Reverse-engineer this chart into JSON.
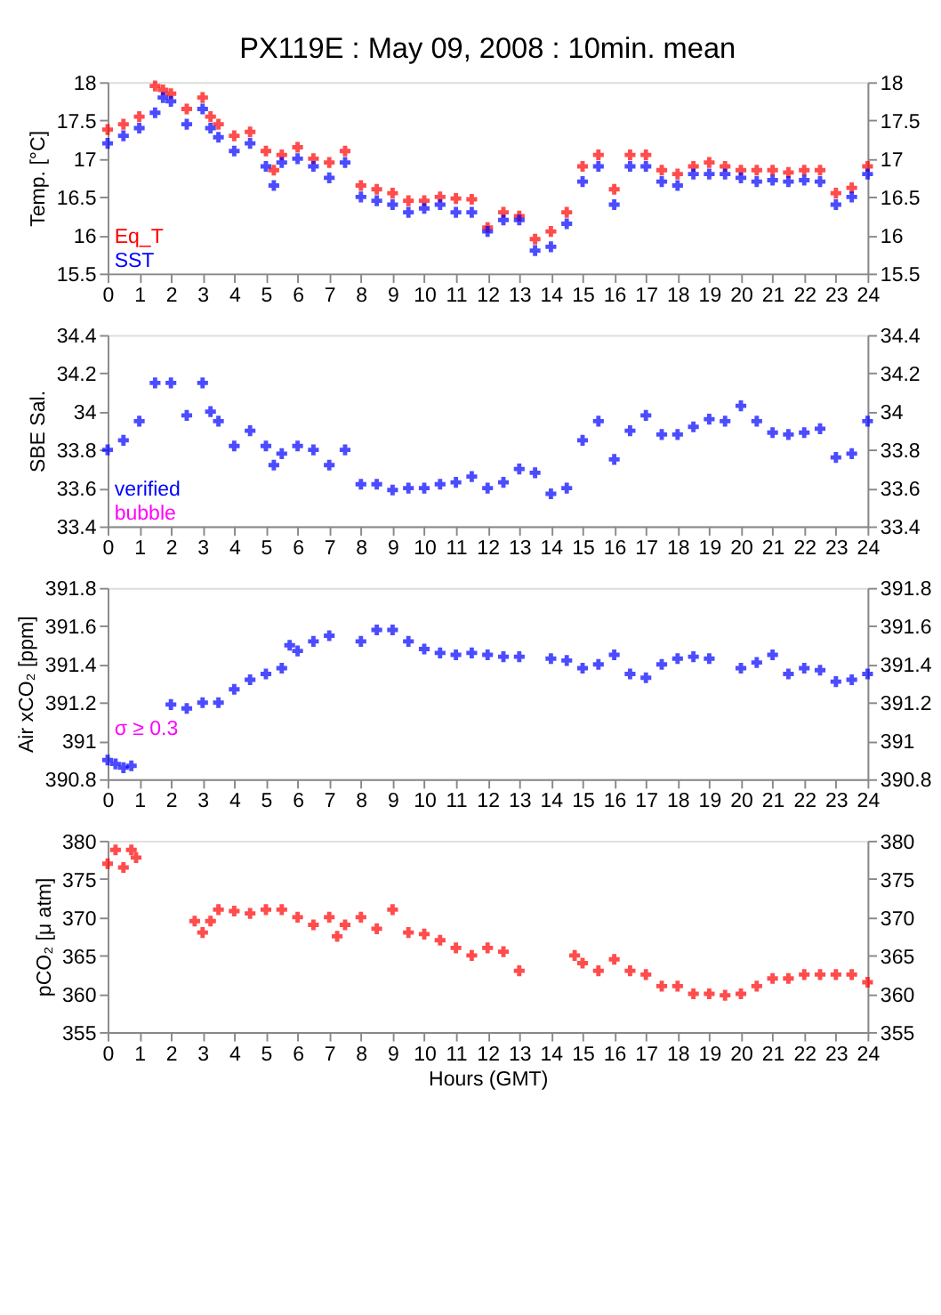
{
  "chart_data": [
    {
      "type": "scatter",
      "title": "PX119E : May 09, 2008 : 10min. mean",
      "ylabel": "Temp. [°C]",
      "marker": "cross",
      "legend": "bottom left",
      "grid": false,
      "x": [
        0,
        0.5,
        1,
        1.5,
        1.75,
        2,
        2.5,
        3,
        3.25,
        3.5,
        4,
        4.5,
        5,
        5.25,
        5.5,
        6,
        6.5,
        7,
        7.5,
        8,
        8.5,
        9,
        9.5,
        10,
        10.5,
        11,
        11.5,
        12,
        12.5,
        13,
        13.5,
        14,
        14.5,
        15,
        15.5,
        16,
        16.5,
        17,
        17.5,
        18,
        18.5,
        19,
        19.5,
        20,
        20.5,
        21,
        21.5,
        22,
        22.5,
        23,
        23.5,
        24
      ],
      "series": [
        {
          "name": "Eq_T",
          "color": "#ff0000",
          "values": [
            17.38,
            17.45,
            17.55,
            17.95,
            17.9,
            17.85,
            17.65,
            17.8,
            17.55,
            17.45,
            17.3,
            17.35,
            17.1,
            16.85,
            17.05,
            17.15,
            17.0,
            16.95,
            17.1,
            16.65,
            16.6,
            16.55,
            16.45,
            16.45,
            16.5,
            16.48,
            16.47,
            16.1,
            16.3,
            16.25,
            15.95,
            16.05,
            16.3,
            16.9,
            17.05,
            16.6,
            17.05,
            17.05,
            16.85,
            16.8,
            16.9,
            16.95,
            16.9,
            16.85,
            16.85,
            16.85,
            16.82,
            16.85,
            16.85,
            16.55,
            16.62,
            16.9
          ]
        },
        {
          "name": "SST",
          "color": "#0000ff",
          "values": [
            17.2,
            17.3,
            17.4,
            17.6,
            17.8,
            17.75,
            17.45,
            17.65,
            17.4,
            17.28,
            17.1,
            17.2,
            16.9,
            16.65,
            16.95,
            17.0,
            16.9,
            16.75,
            16.95,
            16.5,
            16.45,
            16.4,
            16.3,
            16.35,
            16.4,
            16.3,
            16.3,
            16.05,
            16.2,
            16.2,
            15.8,
            15.85,
            16.15,
            16.7,
            16.9,
            16.4,
            16.9,
            16.9,
            16.7,
            16.65,
            16.8,
            16.8,
            16.8,
            16.75,
            16.7,
            16.72,
            16.7,
            16.72,
            16.7,
            16.4,
            16.5,
            16.8
          ]
        }
      ],
      "xlim": [
        0,
        24
      ],
      "xticks": [
        0,
        1,
        2,
        3,
        4,
        5,
        6,
        7,
        8,
        9,
        10,
        11,
        12,
        13,
        14,
        15,
        16,
        17,
        18,
        19,
        20,
        21,
        22,
        23,
        24
      ],
      "ylim": [
        15.5,
        18
      ],
      "yticks": [
        15.5,
        16,
        16.5,
        17,
        17.5,
        18
      ],
      "y2lim": [
        15.5,
        18
      ],
      "y2ticks": [
        15.5,
        16,
        16.5,
        17,
        17.5,
        18
      ]
    },
    {
      "type": "scatter",
      "ylabel": "SBE Sal.",
      "marker": "cross",
      "legend": "bottom left",
      "grid": false,
      "annotations": [
        "bubble"
      ],
      "x": [
        0,
        0.5,
        1,
        1.5,
        2,
        2.5,
        3,
        3.25,
        3.5,
        4,
        4.5,
        5,
        5.25,
        5.5,
        6,
        6.5,
        7,
        7.5,
        8,
        8.5,
        9,
        9.5,
        10,
        10.5,
        11,
        11.5,
        12,
        12.5,
        13,
        13.5,
        14,
        14.5,
        15,
        15.5,
        16,
        16.5,
        17,
        17.5,
        18,
        18.5,
        19,
        19.5,
        20,
        20.5,
        21,
        21.5,
        22,
        22.5,
        23,
        23.5,
        24
      ],
      "series": [
        {
          "name": "verified",
          "color": "#0000ff",
          "values": [
            33.8,
            33.85,
            33.95,
            34.15,
            34.15,
            33.98,
            34.15,
            34.0,
            33.95,
            33.82,
            33.9,
            33.82,
            33.72,
            33.78,
            33.82,
            33.8,
            33.72,
            33.8,
            33.62,
            33.62,
            33.59,
            33.6,
            33.6,
            33.62,
            33.63,
            33.66,
            33.6,
            33.63,
            33.7,
            33.68,
            33.57,
            33.6,
            33.85,
            33.95,
            33.75,
            33.9,
            33.98,
            33.88,
            33.88,
            33.92,
            33.96,
            33.95,
            34.03,
            33.95,
            33.89,
            33.88,
            33.89,
            33.91,
            33.76,
            33.78,
            33.95
          ]
        }
      ],
      "xlim": [
        0,
        24
      ],
      "xticks": [
        0,
        1,
        2,
        3,
        4,
        5,
        6,
        7,
        8,
        9,
        10,
        11,
        12,
        13,
        14,
        15,
        16,
        17,
        18,
        19,
        20,
        21,
        22,
        23,
        24
      ],
      "ylim": [
        33.4,
        34.4
      ],
      "yticks": [
        33.4,
        33.6,
        33.8,
        34,
        34.2,
        34.4
      ],
      "y2lim": [
        33.4,
        34.4
      ],
      "y2ticks": [
        33.4,
        33.6,
        33.8,
        34,
        34.2,
        34.4
      ]
    },
    {
      "type": "scatter",
      "ylabel": "Air xCO₂ [ppm]",
      "marker": "cross",
      "grid": false,
      "annotations": [
        "σ ≥ 0.3"
      ],
      "x": [
        0,
        0.25,
        0.5,
        0.75,
        2,
        2.5,
        3,
        3.5,
        4,
        4.5,
        5,
        5.5,
        5.75,
        6,
        6.5,
        7,
        8,
        8.5,
        9,
        9.5,
        10,
        10.5,
        11,
        11.5,
        12,
        12.5,
        13,
        14,
        14.5,
        15,
        15.5,
        16,
        16.5,
        17,
        17.5,
        18,
        18.5,
        19,
        20,
        20.5,
        21,
        21.5,
        22,
        22.5,
        23,
        23.5,
        24
      ],
      "series": [
        {
          "color": "#0000ff",
          "values": [
            390.9,
            390.88,
            390.86,
            390.87,
            391.19,
            391.17,
            391.2,
            391.2,
            391.27,
            391.32,
            391.35,
            391.38,
            391.5,
            391.47,
            391.52,
            391.55,
            391.52,
            391.58,
            391.58,
            391.52,
            391.48,
            391.46,
            391.45,
            391.46,
            391.45,
            391.44,
            391.44,
            391.43,
            391.42,
            391.38,
            391.4,
            391.45,
            391.35,
            391.33,
            391.4,
            391.43,
            391.44,
            391.43,
            391.38,
            391.41,
            391.45,
            391.35,
            391.38,
            391.37,
            391.31,
            391.32,
            391.35
          ]
        }
      ],
      "xlim": [
        0,
        24
      ],
      "xticks": [
        0,
        1,
        2,
        3,
        4,
        5,
        6,
        7,
        8,
        9,
        10,
        11,
        12,
        13,
        14,
        15,
        16,
        17,
        18,
        19,
        20,
        21,
        22,
        23,
        24
      ],
      "ylim": [
        390.8,
        391.8
      ],
      "yticks": [
        390.8,
        391,
        391.2,
        391.4,
        391.6,
        391.8
      ],
      "y2lim": [
        390.8,
        391.8
      ],
      "y2ticks": [
        390.8,
        391,
        391.2,
        391.4,
        391.6,
        391.8
      ]
    },
    {
      "type": "scatter",
      "ylabel": "pCO₂ [μ atm]",
      "xlabel": "Hours (GMT)",
      "marker": "cross",
      "grid": false,
      "x": [
        0,
        0.25,
        0.5,
        0.75,
        0.9,
        2.75,
        3,
        3.25,
        3.5,
        4,
        4.5,
        5,
        5.5,
        6,
        6.5,
        7,
        7.25,
        7.5,
        8,
        8.5,
        9,
        9.5,
        10,
        10.5,
        11,
        11.5,
        12,
        12.5,
        13,
        14.75,
        15,
        15.5,
        16,
        16.5,
        17,
        17.5,
        18,
        18.5,
        19,
        19.5,
        20,
        20.5,
        21,
        21.5,
        22,
        22.5,
        23,
        23.5,
        24
      ],
      "series": [
        {
          "color": "#ff0000",
          "values": [
            377,
            378.8,
            376.5,
            378.8,
            377.8,
            369.5,
            368,
            369.5,
            371,
            370.8,
            370.5,
            371,
            371,
            370,
            369,
            370,
            367.5,
            369,
            370,
            368.5,
            371,
            368,
            367.8,
            367,
            366,
            365,
            366,
            365.5,
            363,
            365,
            364,
            363,
            364.5,
            363,
            362.5,
            361,
            361,
            360,
            360,
            359.8,
            360,
            361,
            362,
            362,
            362.5,
            362.5,
            362.5,
            362.5,
            361.5
          ]
        }
      ],
      "xlim": [
        0,
        24
      ],
      "xticks": [
        0,
        1,
        2,
        3,
        4,
        5,
        6,
        7,
        8,
        9,
        10,
        11,
        12,
        13,
        14,
        15,
        16,
        17,
        18,
        19,
        20,
        21,
        22,
        23,
        24
      ],
      "ylim": [
        355,
        380
      ],
      "yticks": [
        355,
        360,
        365,
        370,
        375,
        380
      ],
      "y2lim": [
        355,
        380
      ],
      "y2ticks": [
        355,
        360,
        365,
        370,
        375,
        380
      ]
    }
  ]
}
